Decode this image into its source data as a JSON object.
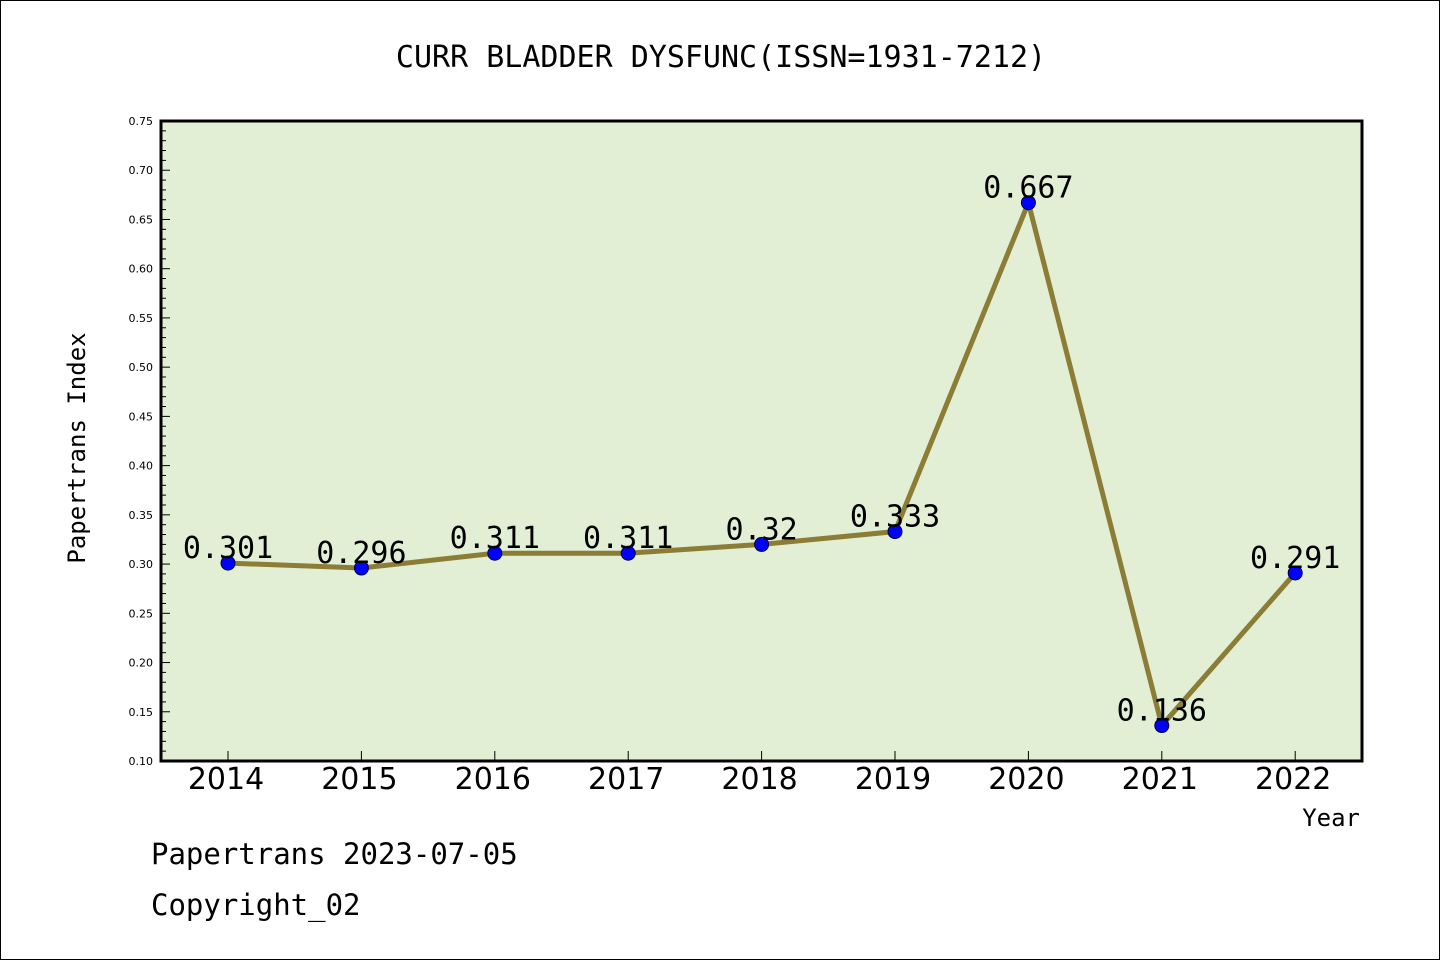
{
  "chart_data": {
    "type": "line",
    "title": "CURR BLADDER DYSFUNC(ISSN=1931-7212)",
    "xlabel": "Year",
    "ylabel": "Papertrans Index",
    "categories": [
      "2014",
      "2015",
      "2016",
      "2017",
      "2018",
      "2019",
      "2020",
      "2021",
      "2022"
    ],
    "series": [
      {
        "values": [
          0.301,
          0.296,
          0.311,
          0.311,
          0.32,
          0.333,
          0.667,
          0.136,
          0.291
        ],
        "data_labels": [
          "0.301",
          "0.296",
          "0.311",
          "0.311",
          "0.32",
          "0.333",
          "0.667",
          "0.136",
          "0.291"
        ],
        "line_color": "#8b7d35",
        "marker_color": "#0000ff"
      }
    ],
    "ylim": [
      0.1,
      0.75
    ],
    "yticks": [
      "0.10",
      "0.15",
      "0.20",
      "0.25",
      "0.30",
      "0.35",
      "0.40",
      "0.45",
      "0.50",
      "0.55",
      "0.60",
      "0.65",
      "0.70",
      "0.75"
    ],
    "plot_background": "#e2efd5",
    "grid": false,
    "legend": "none"
  },
  "footer": {
    "source": "Papertrans 2023-07-05",
    "copyright": "Copyright_02"
  }
}
